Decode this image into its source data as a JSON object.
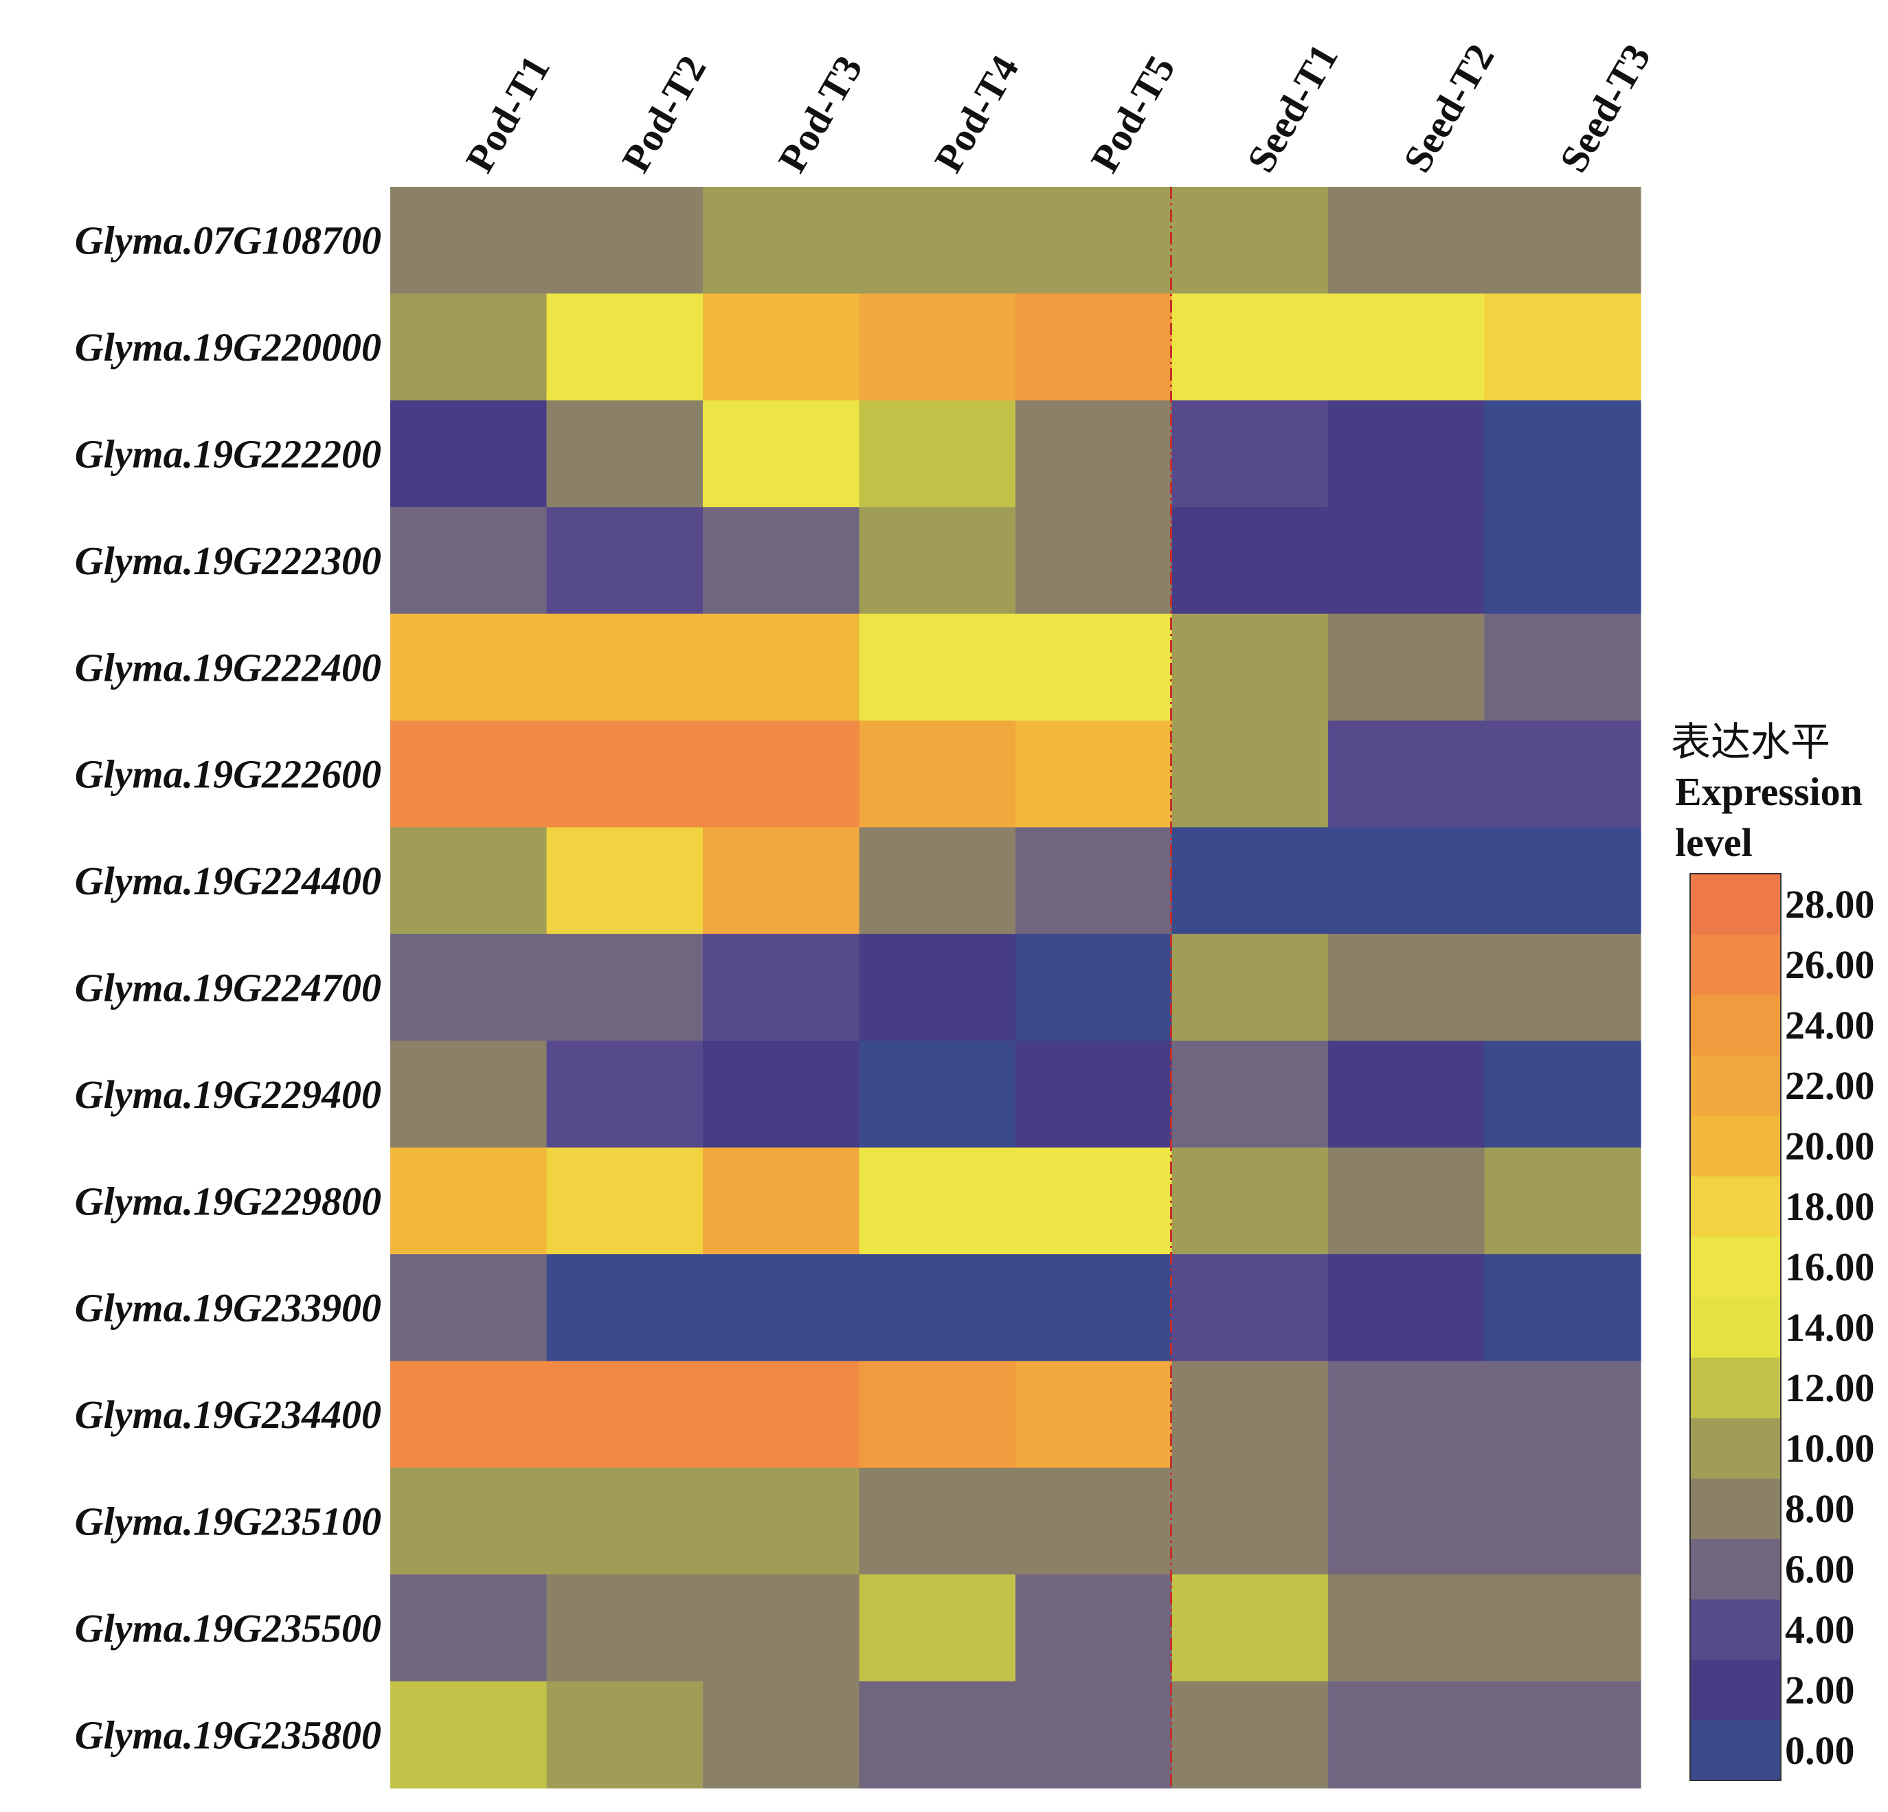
{
  "chart_data": {
    "type": "heatmap",
    "columns": [
      "Pod-T1",
      "Pod-T2",
      "Pod-T3",
      "Pod-T4",
      "Pod-T5",
      "Seed-T1",
      "Seed-T2",
      "Seed-T3"
    ],
    "rows": [
      "Glyma.07G108700",
      "Glyma.19G220000",
      "Glyma.19G222200",
      "Glyma.19G222300",
      "Glyma.19G222400",
      "Glyma.19G222600",
      "Glyma.19G224400",
      "Glyma.19G224700",
      "Glyma.19G229400",
      "Glyma.19G229800",
      "Glyma.19G233900",
      "Glyma.19G234400",
      "Glyma.19G235100",
      "Glyma.19G235500",
      "Glyma.19G235800"
    ],
    "values": [
      [
        9,
        9,
        11,
        11,
        11,
        11,
        9,
        9
      ],
      [
        11,
        17,
        21,
        23,
        25,
        17,
        17,
        19
      ],
      [
        3,
        9,
        17,
        13,
        9,
        5,
        3,
        1
      ],
      [
        7,
        5,
        7,
        11,
        9,
        3,
        3,
        1
      ],
      [
        21,
        21,
        21,
        17,
        17,
        11,
        9,
        7
      ],
      [
        27,
        27,
        27,
        23,
        21,
        11,
        5,
        5
      ],
      [
        11,
        19,
        23,
        9,
        7,
        1,
        1,
        1
      ],
      [
        7,
        7,
        5,
        3,
        1,
        11,
        9,
        9
      ],
      [
        9,
        5,
        3,
        1,
        3,
        7,
        3,
        1
      ],
      [
        21,
        19,
        23,
        17,
        17,
        11,
        9,
        11
      ],
      [
        7,
        1,
        1,
        1,
        1,
        5,
        3,
        1
      ],
      [
        27,
        27,
        27,
        25,
        23,
        9,
        7,
        7
      ],
      [
        11,
        11,
        11,
        9,
        9,
        9,
        7,
        7
      ],
      [
        7,
        9,
        9,
        13,
        7,
        13,
        9,
        9
      ],
      [
        13,
        11,
        9,
        7,
        7,
        9,
        7,
        7
      ]
    ],
    "divider_after_column": "Pod-T5",
    "legend": {
      "title_cn": "表达水平",
      "title_en_line1": "Expression",
      "title_en_line2": "level",
      "ticks": [
        "0.00",
        "2.00",
        "4.00",
        "6.00",
        "8.00",
        "10.00",
        "12.00",
        "14.00",
        "16.00",
        "18.00",
        "20.00",
        "22.00",
        "24.00",
        "26.00",
        "28.00"
      ],
      "range": [
        0,
        30
      ],
      "bins": 15
    },
    "colors": {
      "0": "#3b4a8c",
      "2": "#473d86",
      "4": "#574a8c",
      "6": "#716680",
      "8": "#8a8168",
      "10": "#a09d57",
      "12": "#c2c248",
      "14": "#e4e243",
      "16": "#ede445",
      "18": "#f1d240",
      "20": "#f1b83b",
      "22": "#f1a83d",
      "24": "#f29a3e",
      "26": "#f18a45",
      "28": "#ee7a49"
    },
    "divider_color": "#c4302b"
  }
}
